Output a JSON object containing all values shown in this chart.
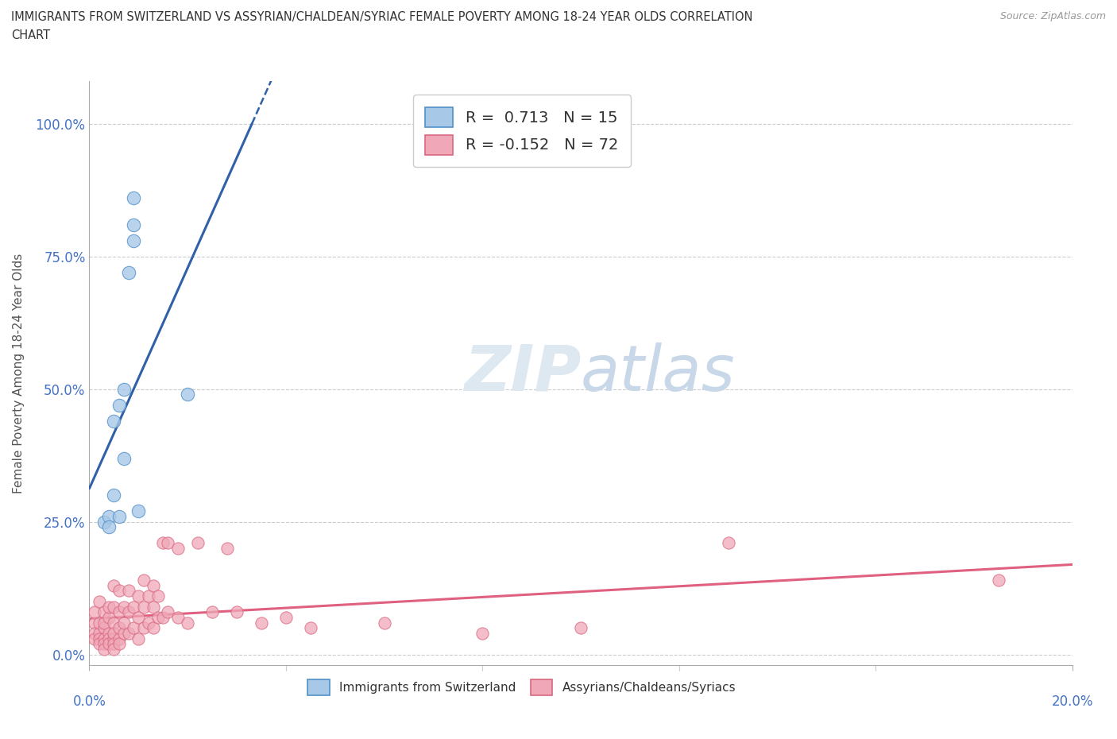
{
  "title_line1": "IMMIGRANTS FROM SWITZERLAND VS ASSYRIAN/CHALDEAN/SYRIAC FEMALE POVERTY AMONG 18-24 YEAR OLDS CORRELATION",
  "title_line2": "CHART",
  "source": "Source: ZipAtlas.com",
  "ylabel": "Female Poverty Among 18-24 Year Olds",
  "xlim": [
    0.0,
    0.2
  ],
  "ylim": [
    -0.02,
    1.08
  ],
  "yticks": [
    0.0,
    0.25,
    0.5,
    0.75,
    1.0
  ],
  "yticklabels": [
    "0.0%",
    "25.0%",
    "50.0%",
    "75.0%",
    "100.0%"
  ],
  "xtick_left_label": "0.0%",
  "xtick_right_label": "20.0%",
  "R_blue": 0.713,
  "N_blue": 15,
  "R_pink": -0.152,
  "N_pink": 72,
  "blue_scatter_color": "#A8C8E8",
  "blue_edge_color": "#5090C8",
  "pink_scatter_color": "#F0A8B8",
  "pink_edge_color": "#D86880",
  "blue_line_color": "#3060A8",
  "pink_line_color": "#E06080",
  "watermark_color": "#DDE8F0",
  "blue_scatter_x": [
    0.003,
    0.004,
    0.004,
    0.005,
    0.005,
    0.006,
    0.006,
    0.007,
    0.007,
    0.008,
    0.009,
    0.009,
    0.009,
    0.01,
    0.02
  ],
  "blue_scatter_y": [
    0.25,
    0.26,
    0.24,
    0.3,
    0.44,
    0.47,
    0.26,
    0.37,
    0.5,
    0.72,
    0.78,
    0.86,
    0.81,
    0.27,
    0.49
  ],
  "pink_scatter_x": [
    0.001,
    0.001,
    0.001,
    0.001,
    0.002,
    0.002,
    0.002,
    0.002,
    0.002,
    0.003,
    0.003,
    0.003,
    0.003,
    0.003,
    0.003,
    0.004,
    0.004,
    0.004,
    0.004,
    0.004,
    0.005,
    0.005,
    0.005,
    0.005,
    0.005,
    0.005,
    0.005,
    0.006,
    0.006,
    0.006,
    0.006,
    0.006,
    0.007,
    0.007,
    0.007,
    0.008,
    0.008,
    0.008,
    0.009,
    0.009,
    0.01,
    0.01,
    0.01,
    0.011,
    0.011,
    0.011,
    0.012,
    0.012,
    0.013,
    0.013,
    0.013,
    0.014,
    0.014,
    0.015,
    0.015,
    0.016,
    0.016,
    0.018,
    0.018,
    0.02,
    0.022,
    0.025,
    0.028,
    0.03,
    0.035,
    0.04,
    0.045,
    0.06,
    0.08,
    0.1,
    0.13,
    0.185
  ],
  "pink_scatter_y": [
    0.06,
    0.08,
    0.04,
    0.03,
    0.04,
    0.06,
    0.1,
    0.03,
    0.02,
    0.05,
    0.08,
    0.03,
    0.06,
    0.02,
    0.01,
    0.04,
    0.07,
    0.03,
    0.09,
    0.02,
    0.03,
    0.06,
    0.09,
    0.13,
    0.04,
    0.02,
    0.01,
    0.03,
    0.05,
    0.08,
    0.12,
    0.02,
    0.04,
    0.06,
    0.09,
    0.04,
    0.08,
    0.12,
    0.05,
    0.09,
    0.03,
    0.07,
    0.11,
    0.05,
    0.09,
    0.14,
    0.06,
    0.11,
    0.05,
    0.09,
    0.13,
    0.07,
    0.11,
    0.07,
    0.21,
    0.08,
    0.21,
    0.07,
    0.2,
    0.06,
    0.21,
    0.08,
    0.2,
    0.08,
    0.06,
    0.07,
    0.05,
    0.06,
    0.04,
    0.05,
    0.21,
    0.14
  ]
}
